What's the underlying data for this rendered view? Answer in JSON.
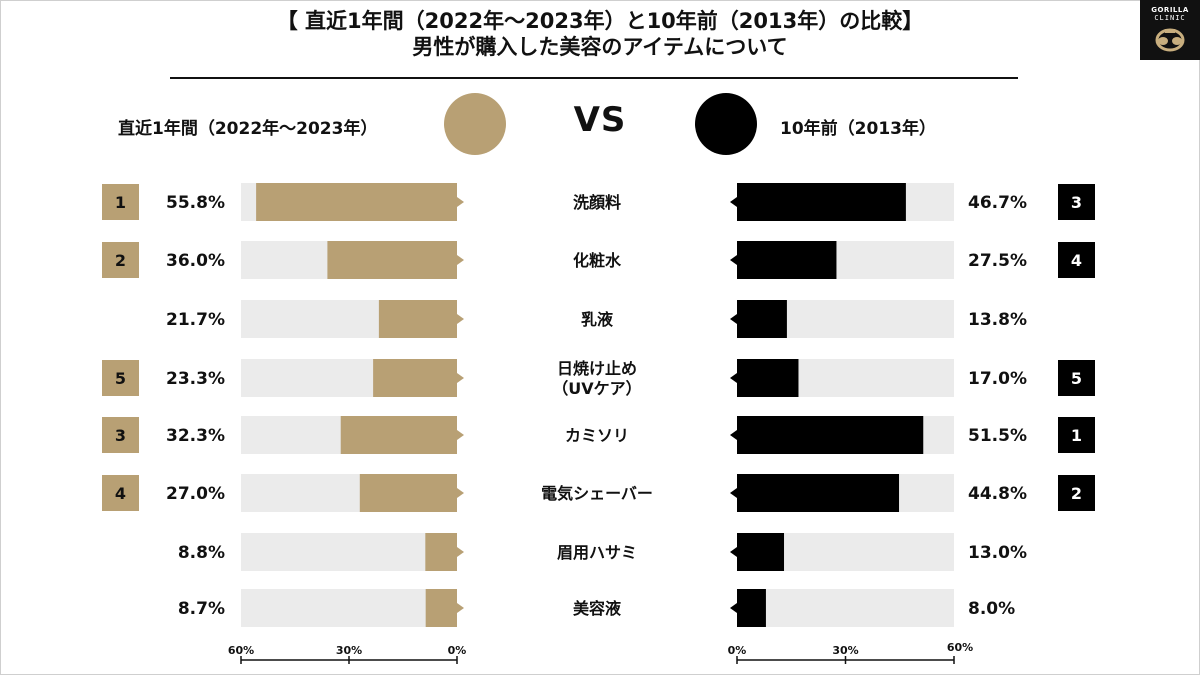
{
  "title": {
    "line1": "【 直近1年間（2022年〜2023年）と10年前（2013年）の比較】",
    "line2": "男性が購入した美容のアイテムについて"
  },
  "logo": {
    "line1": "GORILLA",
    "line2": "CLINIC"
  },
  "vs_label": "VS",
  "colors": {
    "recent": "#b8a074",
    "past": "#000000",
    "track": "#ebebeb"
  },
  "chart_data": {
    "type": "bar",
    "categories": [
      "洗顔料",
      "化粧水",
      "乳液",
      "日焼け止め\n（UVケア）",
      "カミソリ",
      "電気シェーバー",
      "眉用ハサミ",
      "美容液"
    ],
    "series": [
      {
        "name": "直近1年間（2022年〜2023年）",
        "values": [
          55.8,
          36.0,
          21.7,
          23.3,
          32.3,
          27.0,
          8.8,
          8.7
        ],
        "labels": [
          "55.8%",
          "36.0%",
          "21.7%",
          "23.3%",
          "32.3%",
          "27.0%",
          "8.8%",
          "8.7%"
        ],
        "ranks": [
          "1",
          "2",
          "",
          "5",
          "3",
          "4",
          "",
          ""
        ]
      },
      {
        "name": "10年前（2013年）",
        "values": [
          46.7,
          27.5,
          13.8,
          17.0,
          51.5,
          44.8,
          13.0,
          8.0
        ],
        "labels": [
          "46.7%",
          "27.5%",
          "13.8%",
          "17.0%",
          "51.5%",
          "44.8%",
          "13.0%",
          "8.0%"
        ],
        "ranks": [
          "3",
          "4",
          "",
          "5",
          "1",
          "2",
          "",
          ""
        ]
      }
    ],
    "xlim": [
      0,
      60
    ],
    "left_axis_ticks": [
      "60%",
      "30%",
      "0%"
    ],
    "right_axis_ticks": [
      "0%",
      "30%",
      "60%"
    ]
  }
}
